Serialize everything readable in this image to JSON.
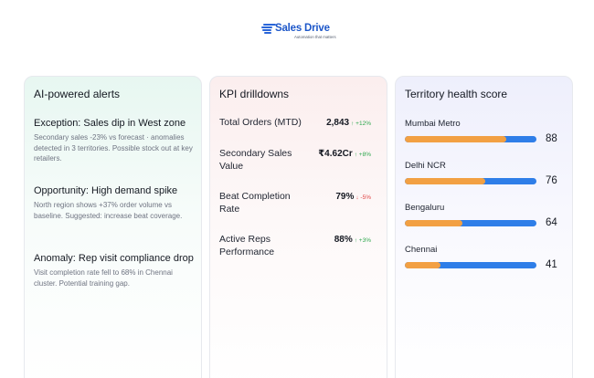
{
  "brand": {
    "name": "Sales Drive",
    "tagline": "Automation that matters"
  },
  "alerts": {
    "title": "AI-powered alerts",
    "items": [
      {
        "title": "Exception: Sales dip in West zone",
        "body": "Secondary sales -23% vs forecast · anomalies detected in 3 territories. Possible stock out at key retailers."
      },
      {
        "title": "Opportunity: High demand spike",
        "body": "North region shows +37% order volume vs baseline. Suggested: increase beat coverage."
      },
      {
        "title": "Anomaly: Rep visit compliance drop",
        "body": "Visit completion rate fell to 68% in Chennai cluster. Potential training gap."
      }
    ]
  },
  "kpi": {
    "title": "KPI drilldowns",
    "items": [
      {
        "label": "Total Orders (MTD)",
        "value": "2,843",
        "delta": "↑ +12%",
        "direction": "up"
      },
      {
        "label": "Secondary Sales Value",
        "value": "₹4.62Cr",
        "delta": "↑ +8%",
        "direction": "up"
      },
      {
        "label": "Beat Completion Rate",
        "value": "79%",
        "delta": "↓ -5%",
        "direction": "down"
      },
      {
        "label": "Active Reps Performance",
        "value": "88%",
        "delta": "↑ +3%",
        "direction": "up"
      }
    ]
  },
  "territory": {
    "title": "Territory health score",
    "items": [
      {
        "name": "Mumbai Metro",
        "score": "88",
        "fill_fraction": 0.77
      },
      {
        "name": "Delhi NCR",
        "score": "76",
        "fill_fraction": 0.61
      },
      {
        "name": "Bengaluru",
        "score": "64",
        "fill_fraction": 0.44
      },
      {
        "name": "Chennai",
        "score": "41",
        "fill_fraction": 0.27
      }
    ],
    "colors": {
      "fill": "#f2a043",
      "track": "#2f7ee8"
    }
  }
}
